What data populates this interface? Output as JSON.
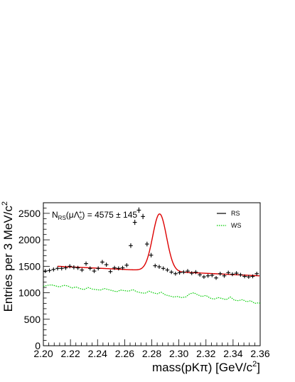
{
  "chart_data": {
    "type": "scatter",
    "title": "",
    "xlabel": "mass(pKπ) [GeV/c²]",
    "ylabel": "Entries per 3 MeV/c²",
    "xlim": [
      2.2,
      2.36
    ],
    "ylim": [
      0,
      2700
    ],
    "x_ticks": [
      2.2,
      2.22,
      2.24,
      2.26,
      2.28,
      2.3,
      2.32,
      2.34,
      2.36
    ],
    "x_tick_labels": [
      "2.20",
      "2.22",
      "2.24",
      "2.26",
      "2.28",
      "2.30",
      "2.32",
      "2.34",
      "2.36"
    ],
    "y_ticks": [
      0,
      500,
      1000,
      1500,
      2000,
      2500
    ],
    "y_tick_labels": [
      "0",
      "500",
      "1000",
      "1500",
      "2000",
      "2500"
    ],
    "annotation": {
      "prefix": "N",
      "prefix_sub": "RS",
      "open": "(μΛ",
      "sub": "c",
      "sup": "+",
      "close": ")",
      "value": " = 4575 ± 145"
    },
    "legend_position": "top-right",
    "series": [
      {
        "name": "RS",
        "kind": "points",
        "color": "#000000",
        "x": [
          2.2015,
          2.2045,
          2.2075,
          2.2105,
          2.2135,
          2.2165,
          2.2195,
          2.2225,
          2.2255,
          2.2285,
          2.2315,
          2.2345,
          2.2375,
          2.2405,
          2.2435,
          2.2465,
          2.2495,
          2.2525,
          2.2555,
          2.2585,
          2.2615,
          2.2645,
          2.2675,
          2.2705,
          2.2735,
          2.2765,
          2.2795,
          2.2825,
          2.2855,
          2.2885,
          2.2915,
          2.2945,
          2.2975,
          2.3005,
          2.3035,
          2.3065,
          2.3095,
          2.3125,
          2.3155,
          2.3185,
          2.3215,
          2.3245,
          2.3275,
          2.3305,
          2.3335,
          2.3365,
          2.3395,
          2.3425,
          2.3455,
          2.3485,
          2.3515,
          2.3545,
          2.3575
        ],
        "y": [
          1410,
          1420,
          1440,
          1460,
          1460,
          1470,
          1500,
          1480,
          1470,
          1430,
          1550,
          1460,
          1410,
          1460,
          1580,
          1530,
          1400,
          1470,
          1460,
          1470,
          1520,
          1890,
          2330,
          2560,
          2440,
          1920,
          1710,
          1510,
          1490,
          1460,
          1430,
          1390,
          1360,
          1380,
          1390,
          1410,
          1370,
          1390,
          1340,
          1300,
          1320,
          1330,
          1280,
          1360,
          1320,
          1380,
          1350,
          1370,
          1340,
          1310,
          1300,
          1310,
          1360
        ],
        "x_err": 0.0015
      },
      {
        "name": "fit",
        "kind": "line",
        "color": "#dd0000",
        "background_start": 1500,
        "background_end": 1320,
        "peak_mean": 2.2858,
        "peak_sigma": 0.0051,
        "peak_height": 1080
      },
      {
        "name": "WS",
        "kind": "dotted-line",
        "color": "#00cc00",
        "x": [
          2.2,
          2.203,
          2.206,
          2.209,
          2.212,
          2.215,
          2.218,
          2.221,
          2.224,
          2.227,
          2.23,
          2.233,
          2.236,
          2.239,
          2.242,
          2.245,
          2.248,
          2.251,
          2.254,
          2.257,
          2.26,
          2.263,
          2.266,
          2.269,
          2.272,
          2.275,
          2.278,
          2.281,
          2.284,
          2.287,
          2.29,
          2.293,
          2.296,
          2.299,
          2.302,
          2.305,
          2.308,
          2.311,
          2.314,
          2.317,
          2.32,
          2.323,
          2.326,
          2.329,
          2.332,
          2.335,
          2.338,
          2.341,
          2.344,
          2.347,
          2.35,
          2.353,
          2.356,
          2.359,
          2.36
        ],
        "y": [
          1120,
          1140,
          1150,
          1130,
          1110,
          1140,
          1130,
          1090,
          1110,
          1080,
          1060,
          1100,
          1070,
          1060,
          1050,
          1080,
          1060,
          1040,
          1020,
          1050,
          1040,
          1030,
          1060,
          1020,
          1000,
          990,
          1030,
          1000,
          980,
          1010,
          960,
          940,
          920,
          930,
          910,
          920,
          980,
          1000,
          960,
          930,
          950,
          900,
          880,
          910,
          890,
          870,
          920,
          860,
          850,
          870,
          830,
          850,
          800,
          810,
          800
        ]
      }
    ],
    "legend": [
      {
        "label": "RS",
        "color": "#000000",
        "style": "solid"
      },
      {
        "label": "WS",
        "color": "#00cc00",
        "style": "dotted"
      }
    ]
  }
}
